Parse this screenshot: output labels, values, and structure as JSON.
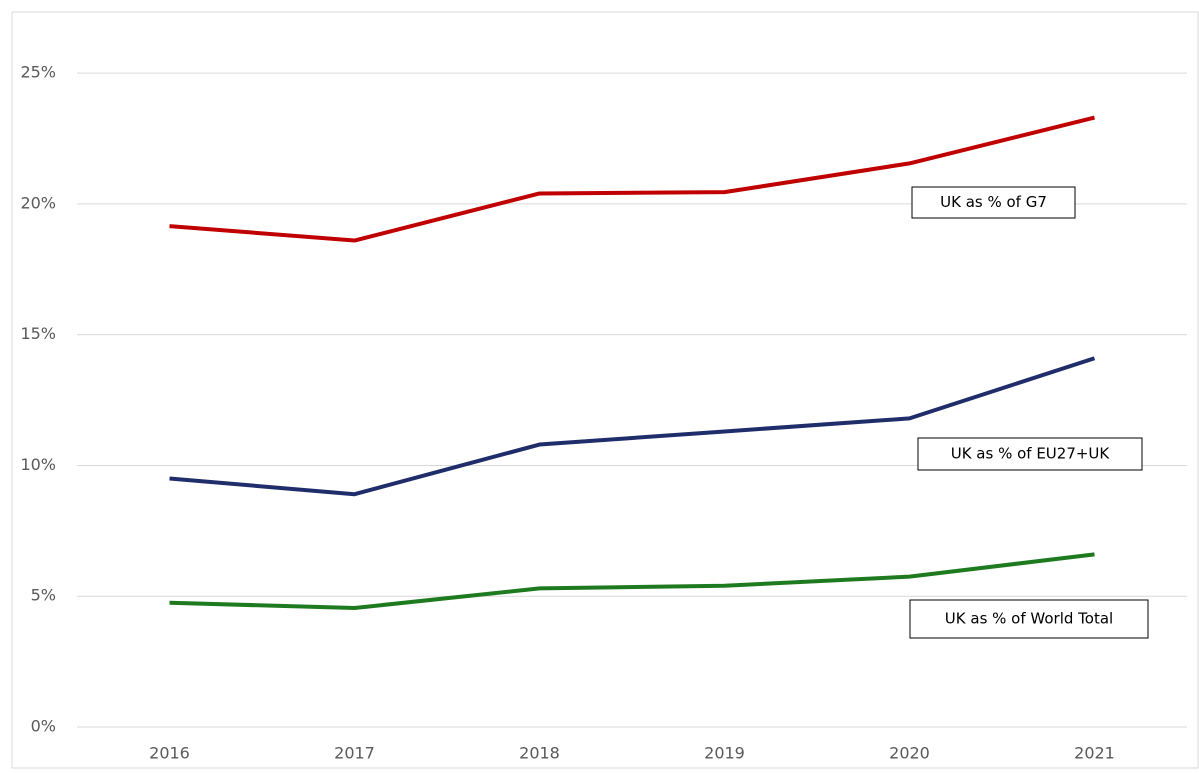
{
  "chart_data": {
    "type": "line",
    "categories": [
      "2016",
      "2017",
      "2018",
      "2019",
      "2020",
      "2021"
    ],
    "series": [
      {
        "name": "UK as % of G7",
        "color": "#c00000",
        "values": [
          19.15,
          18.6,
          20.4,
          20.45,
          21.55,
          23.3
        ]
      },
      {
        "name": "UK as % of EU27+UK",
        "color": "#1f2d6b",
        "values": [
          9.5,
          8.9,
          10.8,
          11.3,
          11.8,
          14.1
        ]
      },
      {
        "name": "UK as % of World Total",
        "color": "#1e7a1e",
        "values": [
          4.75,
          4.55,
          5.3,
          5.4,
          5.75,
          6.6
        ]
      }
    ],
    "ylim": [
      0,
      27.3
    ],
    "yticks": [
      {
        "value": 0,
        "label": "0%"
      },
      {
        "value": 5,
        "label": "5%"
      },
      {
        "value": 10,
        "label": "10%"
      },
      {
        "value": 15,
        "label": "15%"
      },
      {
        "value": 20,
        "label": "20%"
      },
      {
        "value": 25,
        "label": "25%"
      }
    ],
    "grid": true
  }
}
